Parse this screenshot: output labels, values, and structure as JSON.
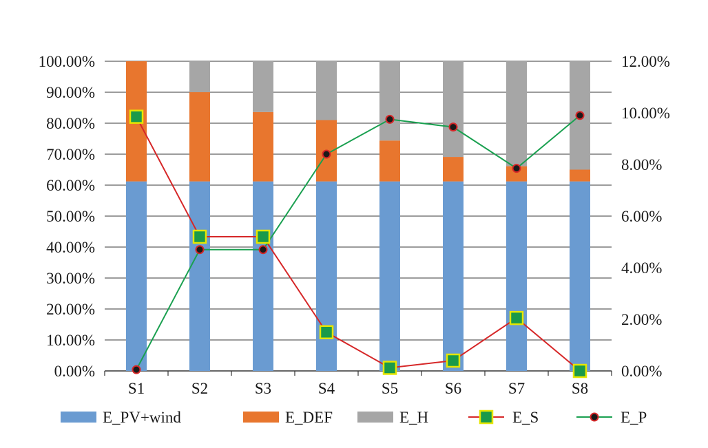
{
  "chart_data": {
    "type": "bar",
    "stacked": true,
    "title": "",
    "xlabel": "",
    "ylabel": "",
    "y2label": "",
    "categories": [
      "S1",
      "S2",
      "S3",
      "S4",
      "S5",
      "S6",
      "S7",
      "S8"
    ],
    "ylim": [
      0,
      100
    ],
    "y2lim": [
      0,
      12
    ],
    "y_ticks": [
      "0.00%",
      "10.00%",
      "20.00%",
      "30.00%",
      "40.00%",
      "50.00%",
      "60.00%",
      "70.00%",
      "80.00%",
      "90.00%",
      "100.00%"
    ],
    "y2_ticks": [
      "0.00%",
      "2.00%",
      "4.00%",
      "6.00%",
      "8.00%",
      "10.00%",
      "12.00%"
    ],
    "grid": true,
    "legend_position": "bottom",
    "series": [
      {
        "name": "E_PV+wind",
        "kind": "bar",
        "axis": "left",
        "color": "#6A9BD1",
        "values": [
          61.2,
          61.2,
          61.2,
          61.2,
          61.2,
          61.2,
          61.2,
          61.2
        ]
      },
      {
        "name": "E_DEF",
        "kind": "bar",
        "axis": "left",
        "color": "#E8762E",
        "values": [
          38.8,
          28.8,
          22.4,
          19.8,
          13.2,
          7.9,
          4.9,
          3.8
        ]
      },
      {
        "name": "E_H",
        "kind": "bar",
        "axis": "left",
        "color": "#A6A6A6",
        "values": [
          0.0,
          10.0,
          16.4,
          19.0,
          25.6,
          30.9,
          33.9,
          35.0
        ]
      },
      {
        "name": "E_S",
        "kind": "line",
        "axis": "right",
        "color": "#D62728",
        "marker": "square",
        "marker_fill": "#1A9A4A",
        "marker_edge": "#E6E600",
        "values": [
          9.85,
          5.2,
          5.2,
          1.5,
          0.12,
          0.4,
          2.05,
          0.0
        ]
      },
      {
        "name": "E_P",
        "kind": "line",
        "axis": "right",
        "color": "#1AA050",
        "marker": "circle",
        "marker_fill": "#1a1a1a",
        "marker_edge": "#D62728",
        "values": [
          0.05,
          4.7,
          4.7,
          8.4,
          9.75,
          9.45,
          7.85,
          9.9
        ]
      }
    ]
  }
}
